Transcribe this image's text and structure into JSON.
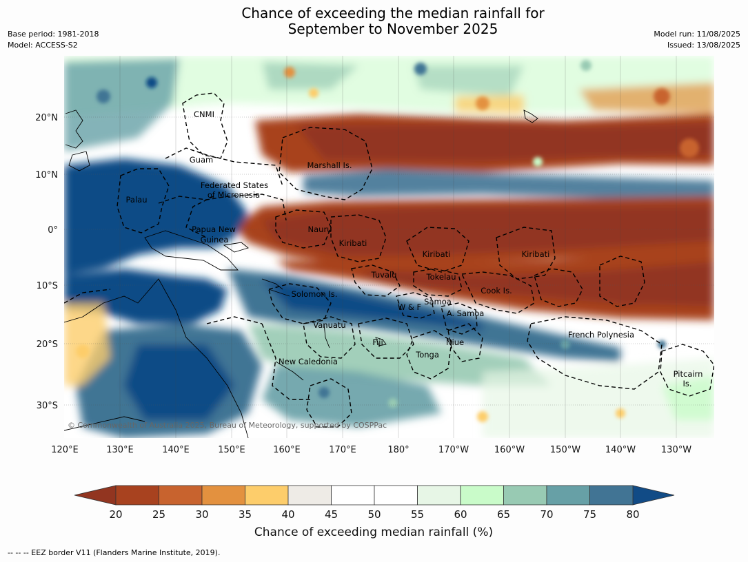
{
  "title_line1": "Chance of exceeding the median rainfall for",
  "title_line2": "September to November 2025",
  "meta_left": {
    "base_period": "Base period: 1981-2018",
    "model": "Model: ACCESS-S2"
  },
  "meta_right": {
    "model_run": "Model run: 11/08/2025",
    "issued": "Issued: 13/08/2025"
  },
  "map": {
    "lon_labels": [
      "120°E",
      "130°E",
      "140°E",
      "150°E",
      "160°E",
      "170°E",
      "180°",
      "170°W",
      "160°W",
      "150°W",
      "140°W",
      "130°W"
    ],
    "lat_labels": [
      "20°N",
      "10°N",
      "0°",
      "10°S",
      "20°S",
      "30°S"
    ],
    "copyright": "© Commonwealth of Australia 2025, Bureau of Meteorology, supported by COSPPac",
    "places": [
      {
        "text": "CNMI"
      },
      {
        "text": "Guam"
      },
      {
        "text": "Marshall Is."
      },
      {
        "text": "Federated States"
      },
      {
        "text": "of Micronesia"
      },
      {
        "text": "Palau"
      },
      {
        "text": "Nauru"
      },
      {
        "text": "Papua New"
      },
      {
        "text": "Guinea"
      },
      {
        "text": "Kiribati"
      },
      {
        "text": "Kiribati"
      },
      {
        "text": "Kiribati"
      },
      {
        "text": "Tuvalu"
      },
      {
        "text": "Tokelau"
      },
      {
        "text": "Cook Is."
      },
      {
        "text": "Solomon Is."
      },
      {
        "text": "W & F"
      },
      {
        "text": "Samoa"
      },
      {
        "text": "A. Samoa"
      },
      {
        "text": "Vanuatu"
      },
      {
        "text": "Fiji"
      },
      {
        "text": "Niue"
      },
      {
        "text": "French Polynesia"
      },
      {
        "text": "Tonga"
      },
      {
        "text": "New Caledonia"
      },
      {
        "text": "Pitcairn"
      },
      {
        "text": "Is."
      }
    ]
  },
  "colorbar": {
    "ticks": [
      "20",
      "25",
      "30",
      "35",
      "40",
      "45",
      "50",
      "55",
      "60",
      "65",
      "70",
      "75",
      "80"
    ],
    "colors": [
      "#a8421f",
      "#c8632e",
      "#e3913f",
      "#fdcd6b",
      "#eeebe6",
      "#ffffff",
      "#ffffff",
      "#e7f6e6",
      "#c9fbc9",
      "#98cab3",
      "#67a0a6",
      "#417494"
    ],
    "under_color": "#923520",
    "over_color": "#114b86",
    "label": "Chance of exceeding median rainfall (%)"
  },
  "footer": "--  --  -- EEZ border V11 (Flanders Marine Institute, 2019)."
}
